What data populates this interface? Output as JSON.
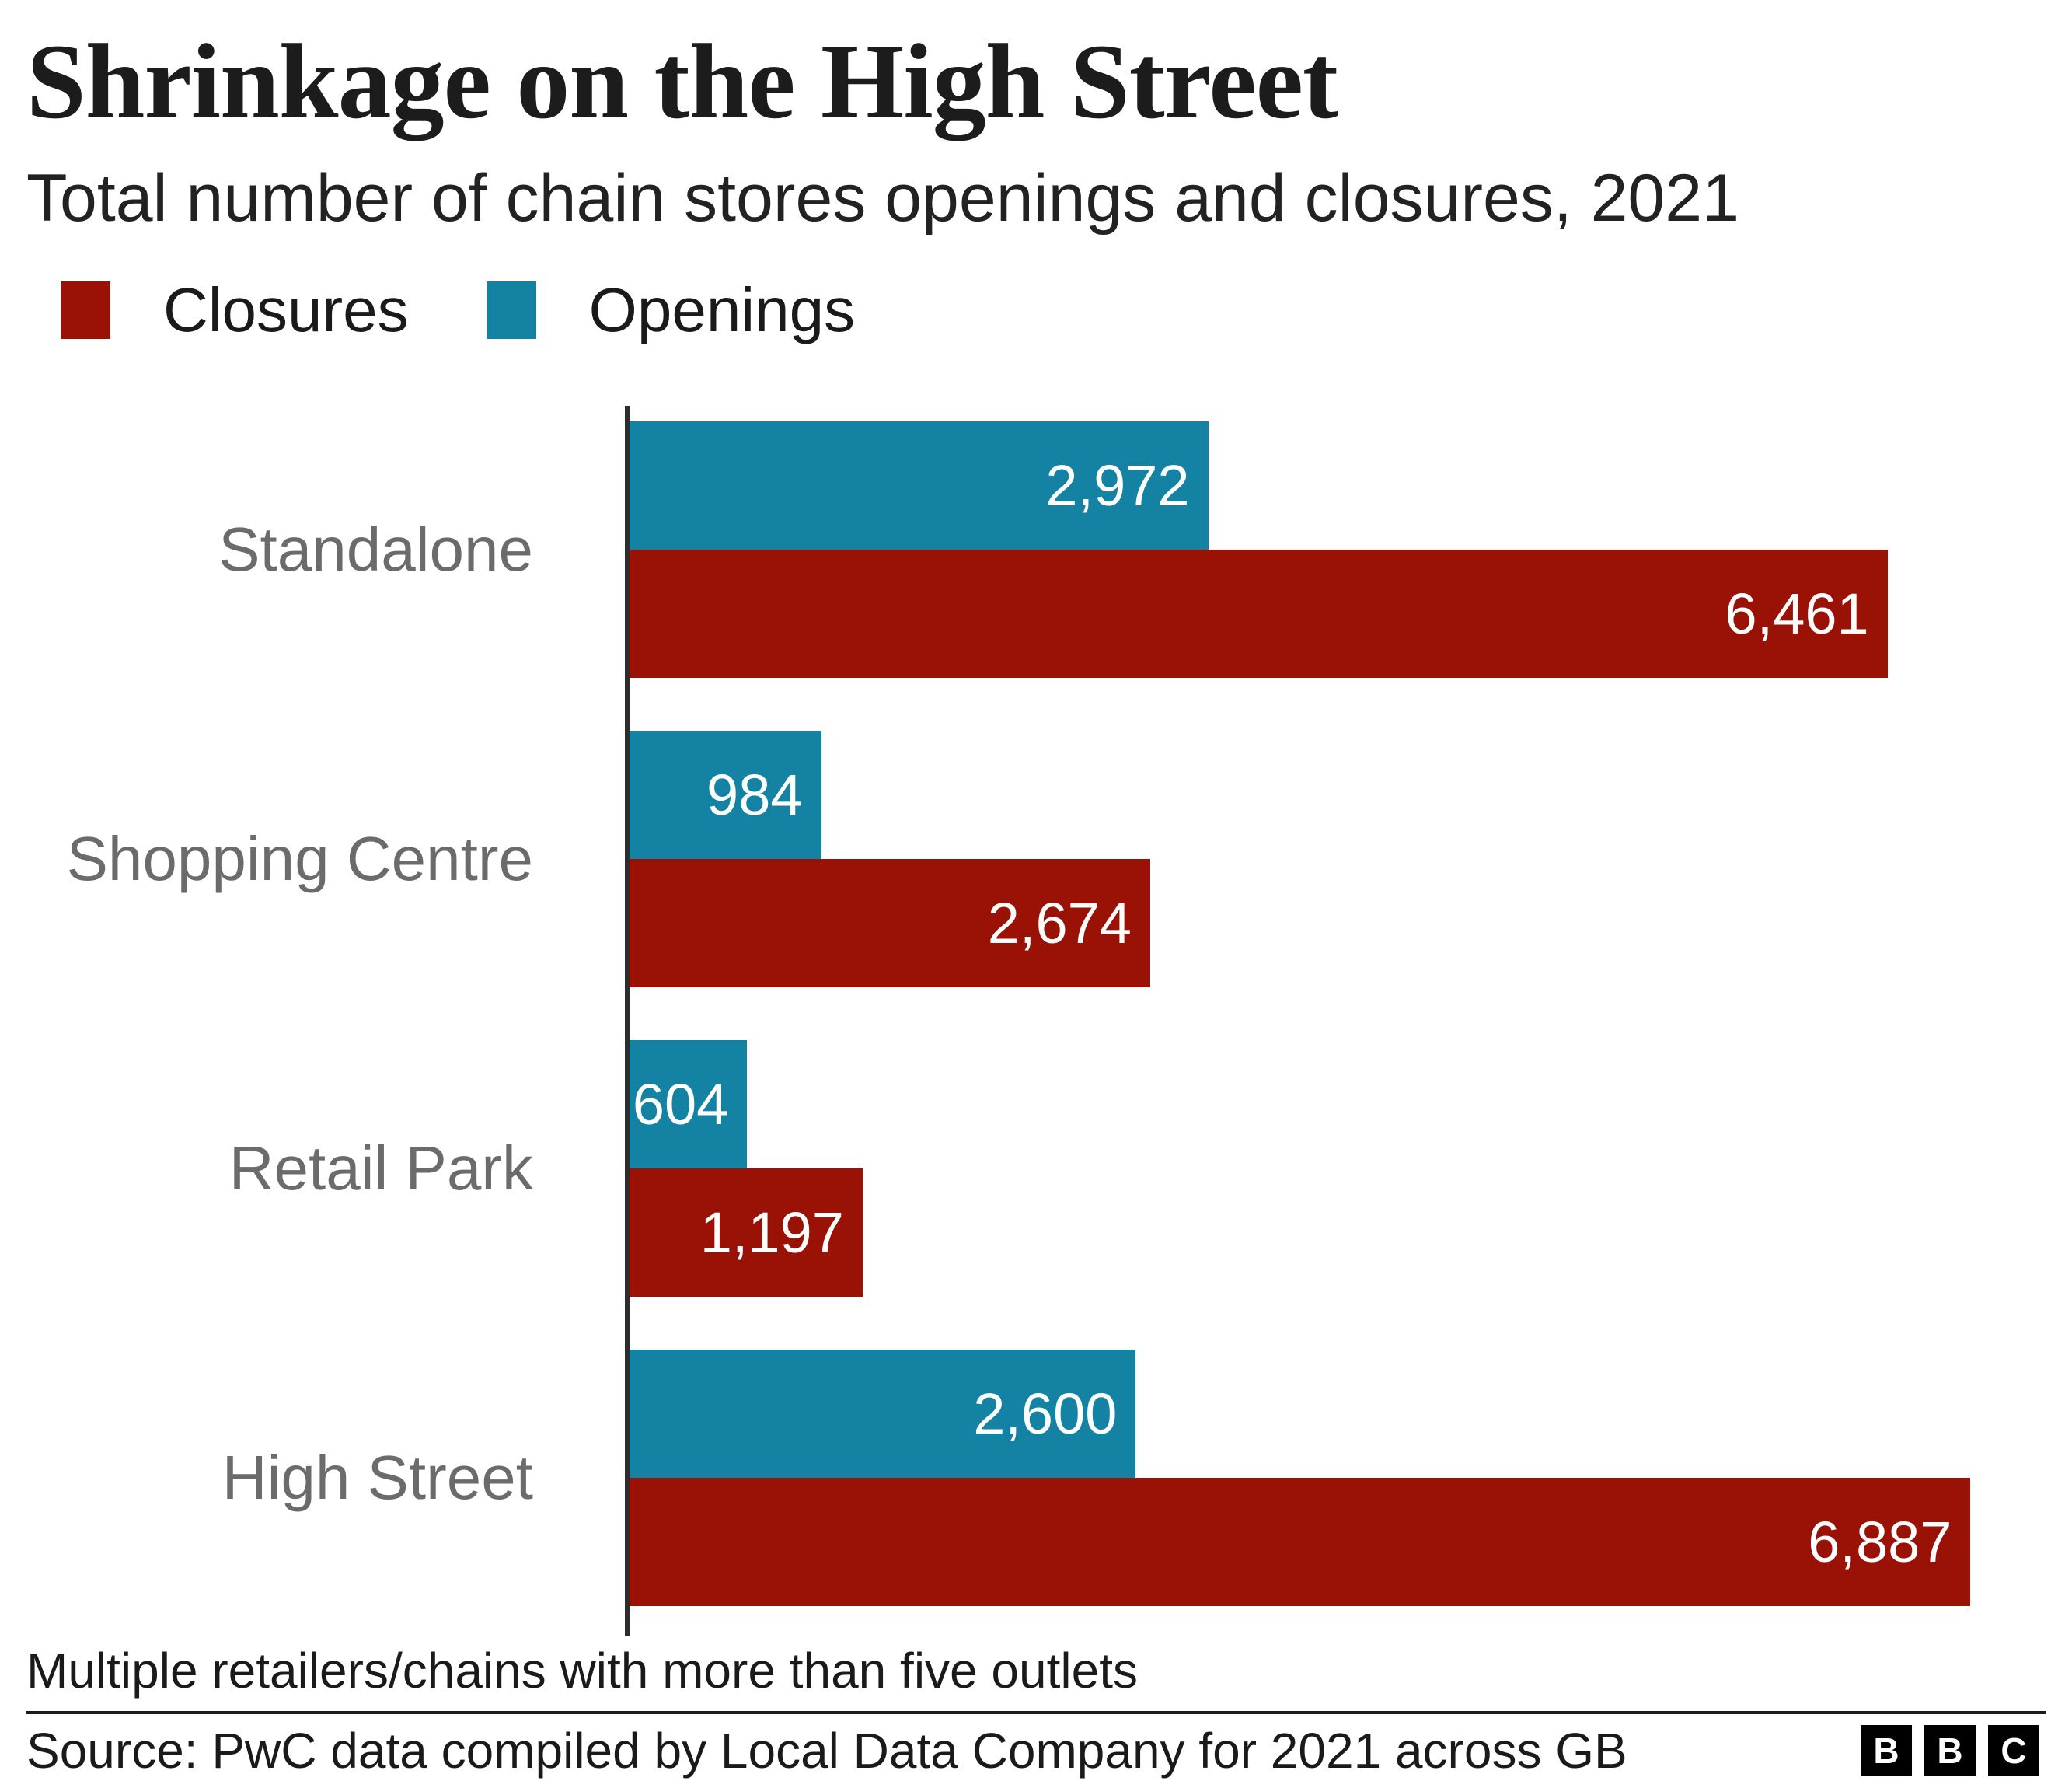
{
  "header": {
    "title": "Shrinkage on the High Street",
    "subtitle": "Total number of chain stores openings and closures, 2021"
  },
  "legend": {
    "items": [
      {
        "label": "Closures",
        "color": "#9A1106"
      },
      {
        "label": "Openings",
        "color": "#1483A3"
      }
    ]
  },
  "chart_data": {
    "type": "bar",
    "orientation": "horizontal",
    "title": "Shrinkage on the High Street",
    "subtitle": "Total number of chain stores openings and closures, 2021",
    "categories": [
      "Standalone",
      "Shopping Centre",
      "Retail Park",
      "High Street"
    ],
    "series": [
      {
        "name": "Openings",
        "color": "#1483A3",
        "values": [
          2972,
          984,
          604,
          2600
        ],
        "labels": [
          "2,972",
          "984",
          "604",
          "2,600"
        ]
      },
      {
        "name": "Closures",
        "color": "#9A1106",
        "values": [
          6461,
          2674,
          1197,
          6887
        ],
        "labels": [
          "6,461",
          "2,674",
          "1,197",
          "6,887"
        ]
      }
    ],
    "value_label_position": "inside-end",
    "grid": false,
    "axis_color": "#2d2d2d",
    "category_label_color": "#6b6b6b",
    "xlim": [
      0,
      7280
    ]
  },
  "footnote": "Multiple retailers/chains with more than five outlets",
  "source": "Source: PwC data compiled by Local Data Company for 2021 across GB",
  "logo": {
    "letters": [
      "B",
      "B",
      "C"
    ]
  }
}
